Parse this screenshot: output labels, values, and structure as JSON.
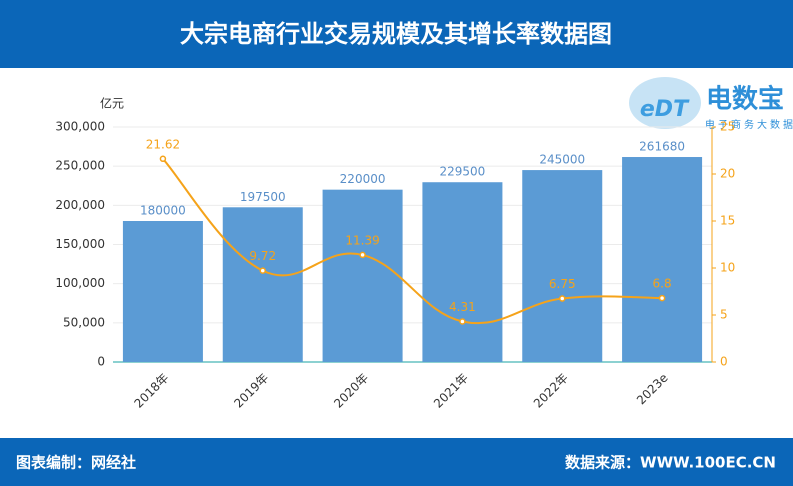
{
  "chart_data": {
    "type": "bar-line",
    "title": "大宗电商行业交易规模及其增长率数据图",
    "y_label": "亿元",
    "categories": [
      "2018年",
      "2019年",
      "2020年",
      "2021年",
      "2022年",
      "2023e"
    ],
    "series": [
      {
        "type": "bar",
        "color": "#5b9bd5",
        "values": [
          180000,
          197500,
          220000,
          229500,
          245000,
          261680
        ]
      },
      {
        "type": "line",
        "color": "#f5a31a",
        "axis": "y2",
        "values": [
          21.62,
          9.72,
          11.39,
          4.31,
          6.75,
          6.8
        ]
      }
    ],
    "ylim": [
      0,
      300000
    ],
    "yticks": [
      0,
      {
        "value": 50000,
        "label": "50,000"
      },
      {
        "value": 100000,
        "label": "100,000"
      },
      {
        "value": 150000,
        "label": "150,000"
      },
      {
        "value": 200000,
        "label": "200,000"
      },
      {
        "value": 250000,
        "label": "250,000"
      },
      {
        "value": 300000,
        "label": "300,000"
      }
    ],
    "y2lim": [
      0,
      25
    ],
    "y2ticks": [
      0,
      5,
      10,
      15,
      20,
      25
    ],
    "grid": true
  },
  "logo": {
    "mark": "eDT",
    "name": "电数宝",
    "tagline": "电子商务大数据库"
  },
  "footer": {
    "left": "图表编制：网经社",
    "right": "数据来源：WWW.100EC.CN"
  }
}
